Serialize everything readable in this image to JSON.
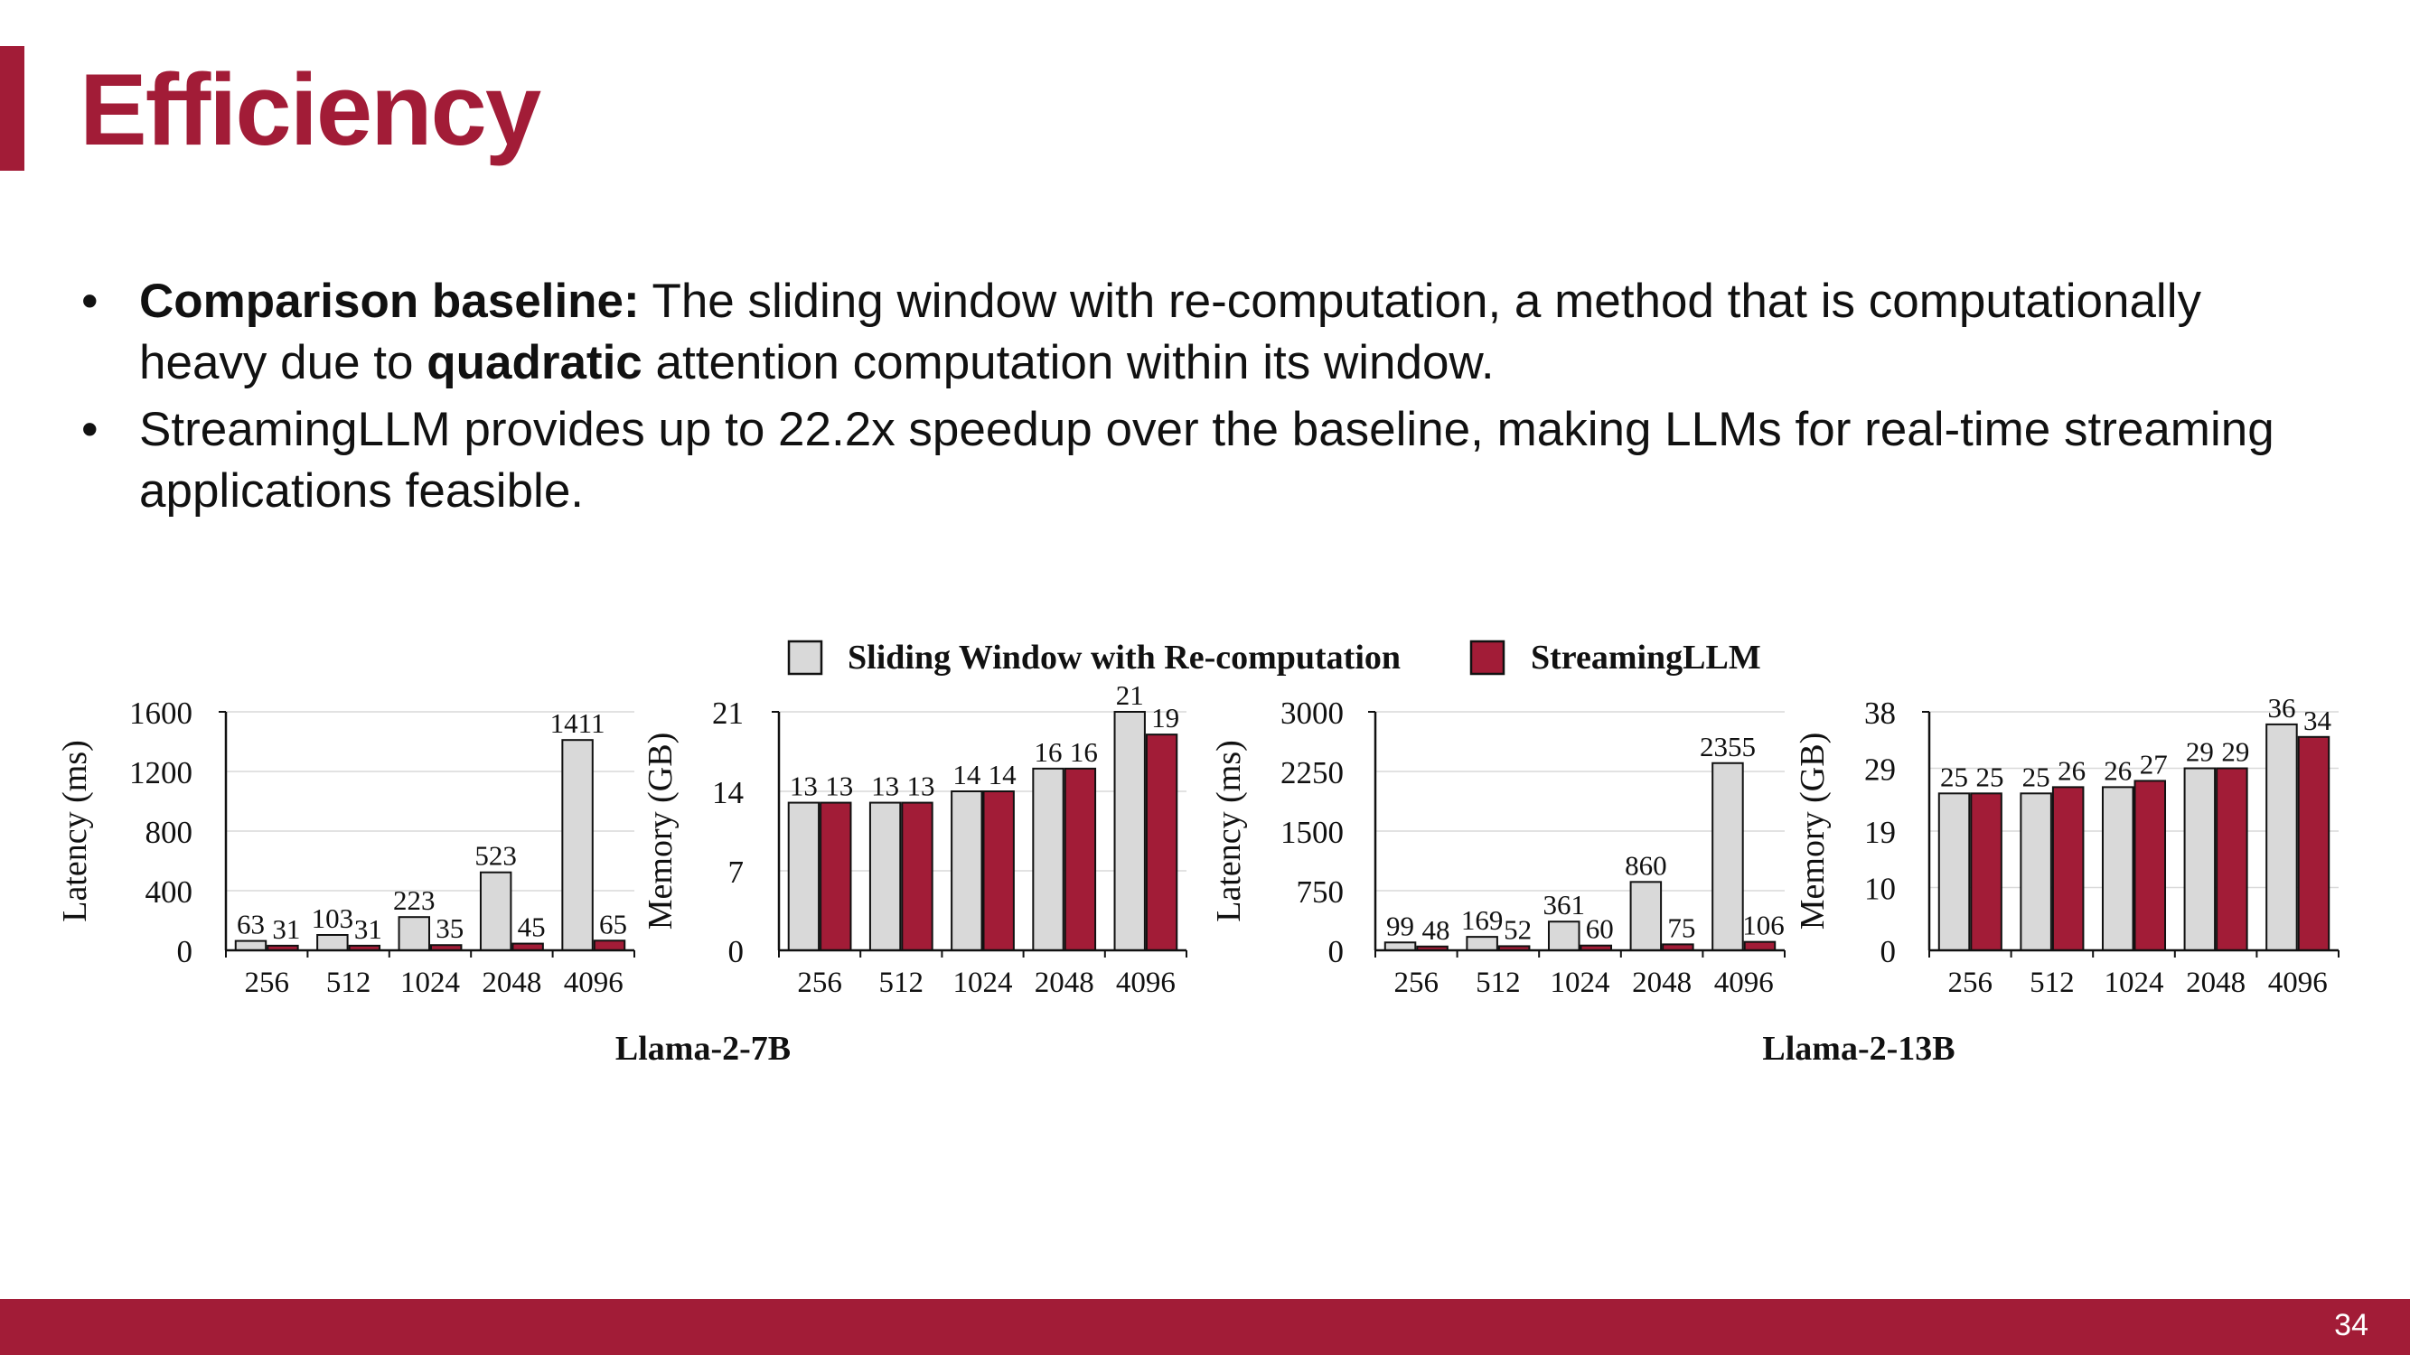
{
  "slide": {
    "title": "Efficiency",
    "page_number": "34",
    "bullets": [
      {
        "parts": [
          {
            "text": "Comparison baseline:",
            "bold": true
          },
          {
            "text": " The sliding window with re-computation, a method that is computationally heavy due to ",
            "bold": false
          },
          {
            "text": "quadratic",
            "bold": true
          },
          {
            "text": " attention computation within its window.",
            "bold": false
          }
        ]
      },
      {
        "parts": [
          {
            "text": "StreamingLLM provides up to 22.2x speedup over the baseline, making LLMs for real-time streaming applications feasible.",
            "bold": false
          }
        ]
      }
    ]
  },
  "legend": {
    "items": [
      {
        "label": "Sliding Window with Re-computation",
        "color": "#D9D9D9"
      },
      {
        "label": "StreamingLLM",
        "color": "#A21C37"
      }
    ]
  },
  "groups": [
    {
      "label": "Llama-2-7B"
    },
    {
      "label": "Llama-2-13B"
    }
  ],
  "chart_data": [
    {
      "type": "bar",
      "group": "Llama-2-7B",
      "ylabel": "Latency (ms)",
      "categories": [
        "256",
        "512",
        "1024",
        "2048",
        "4096"
      ],
      "yticks": [
        "0",
        "400",
        "800",
        "1200",
        "1600"
      ],
      "ylim": [
        0,
        1600
      ],
      "series": [
        {
          "name": "Sliding Window with Re-computation",
          "values": [
            63,
            103,
            223,
            523,
            1411
          ]
        },
        {
          "name": "StreamingLLM",
          "values": [
            31,
            31,
            35,
            45,
            65
          ]
        }
      ]
    },
    {
      "type": "bar",
      "group": "Llama-2-7B",
      "ylabel": "Memory (GB)",
      "categories": [
        "256",
        "512",
        "1024",
        "2048",
        "4096"
      ],
      "yticks": [
        "0",
        "7",
        "14",
        "21"
      ],
      "ylim": [
        0,
        21
      ],
      "series": [
        {
          "name": "Sliding Window with Re-computation",
          "values": [
            13,
            13,
            14,
            16,
            21
          ]
        },
        {
          "name": "StreamingLLM",
          "values": [
            13,
            13,
            14,
            16,
            19
          ]
        }
      ]
    },
    {
      "type": "bar",
      "group": "Llama-2-13B",
      "ylabel": "Latency (ms)",
      "categories": [
        "256",
        "512",
        "1024",
        "2048",
        "4096"
      ],
      "yticks": [
        "0",
        "750",
        "1500",
        "2250",
        "3000"
      ],
      "ylim": [
        0,
        3000
      ],
      "series": [
        {
          "name": "Sliding Window with Re-computation",
          "values": [
            99,
            169,
            361,
            860,
            2355
          ]
        },
        {
          "name": "StreamingLLM",
          "values": [
            48,
            52,
            60,
            75,
            106
          ]
        }
      ]
    },
    {
      "type": "bar",
      "group": "Llama-2-13B",
      "ylabel": "Memory (GB)",
      "categories": [
        "256",
        "512",
        "1024",
        "2048",
        "4096"
      ],
      "yticks": [
        "0",
        "10",
        "19",
        "29",
        "38"
      ],
      "ylim": [
        0,
        38
      ],
      "series": [
        {
          "name": "Sliding Window with Re-computation",
          "values": [
            25,
            25,
            26,
            29,
            36
          ]
        },
        {
          "name": "StreamingLLM",
          "values": [
            25,
            26,
            27,
            29,
            34
          ]
        }
      ]
    }
  ]
}
